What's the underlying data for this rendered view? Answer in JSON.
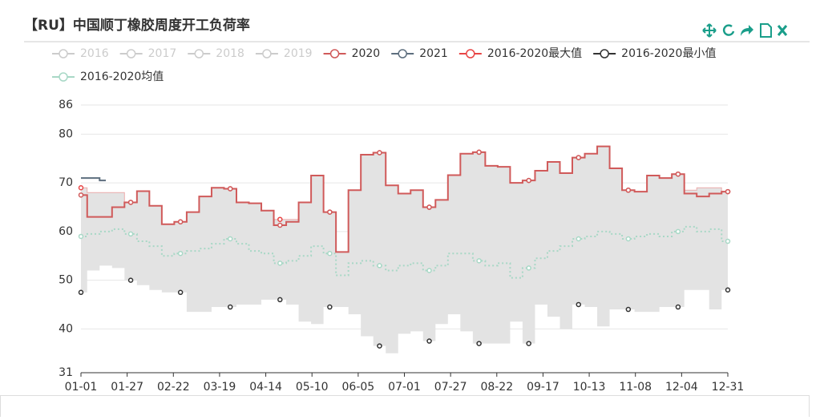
{
  "chart_data": {
    "type": "step-line",
    "title": "【RU】中国顺丁橡胶周度开工负荷率",
    "x": [
      0,
      7,
      14,
      21,
      28,
      35,
      42,
      49,
      56,
      63,
      70,
      77,
      84,
      91,
      98,
      105,
      112,
      119,
      126,
      133,
      140,
      147,
      154,
      161,
      168,
      175,
      182,
      189,
      196,
      203,
      210,
      217,
      224,
      231,
      238,
      245,
      252,
      259,
      266,
      273,
      280,
      287,
      294,
      301,
      308,
      315,
      322,
      329,
      336,
      343,
      350,
      357,
      364
    ],
    "xlim": [
      0,
      364
    ],
    "xticks": [
      {
        "value": 0,
        "label": "01-01"
      },
      {
        "value": 26,
        "label": "01-27"
      },
      {
        "value": 52,
        "label": "02-22"
      },
      {
        "value": 78,
        "label": "03-19"
      },
      {
        "value": 104,
        "label": "04-14"
      },
      {
        "value": 130,
        "label": "05-10"
      },
      {
        "value": 156,
        "label": "06-05"
      },
      {
        "value": 182,
        "label": "07-01"
      },
      {
        "value": 208,
        "label": "07-27"
      },
      {
        "value": 234,
        "label": "08-22"
      },
      {
        "value": 260,
        "label": "09-17"
      },
      {
        "value": 286,
        "label": "10-13"
      },
      {
        "value": 312,
        "label": "11-08"
      },
      {
        "value": 338,
        "label": "12-04"
      },
      {
        "value": 364,
        "label": "12-31"
      }
    ],
    "ylim": [
      31,
      86
    ],
    "yticks": [
      31,
      40,
      50,
      60,
      70,
      80,
      86
    ],
    "grid": true,
    "legend_disabled_color": "#cccccc",
    "series": [
      {
        "name": "2016",
        "color": "#cccccc",
        "hidden": true
      },
      {
        "name": "2017",
        "color": "#cccccc",
        "hidden": true
      },
      {
        "name": "2018",
        "color": "#cccccc",
        "hidden": true
      },
      {
        "name": "2019",
        "color": "#cccccc",
        "hidden": true
      },
      {
        "name": "2020",
        "color": "#d05a5a",
        "role": "line",
        "values": [
          67.5,
          63,
          63,
          65,
          66,
          68.3,
          65.3,
          61.5,
          62,
          64,
          67.2,
          69,
          68.8,
          66,
          65.8,
          64.3,
          61.3,
          62,
          66,
          71.5,
          64,
          55.8,
          68.5,
          75.8,
          76.2,
          69.5,
          67.8,
          68.5,
          65,
          66.5,
          71.6,
          76,
          76.3,
          73.5,
          73.3,
          70,
          70.5,
          72.5,
          74.3,
          72,
          75.2,
          76,
          77.5,
          73,
          68.5,
          68.2,
          71.5,
          71,
          71.8,
          67.8,
          67.2,
          67.8,
          68.2
        ]
      },
      {
        "name": "2021",
        "color": "#5d6e7e",
        "role": "line",
        "values": [
          71,
          71,
          70.5,
          null,
          null,
          null,
          null,
          null,
          null,
          null,
          null,
          null,
          null,
          null,
          null,
          null,
          null,
          null,
          null,
          null,
          null,
          null,
          null,
          null,
          null,
          null,
          null,
          null,
          null,
          null,
          null,
          null,
          null,
          null,
          null,
          null,
          null,
          null,
          null,
          null,
          null,
          null,
          null,
          null,
          null,
          null,
          null,
          null,
          null,
          null,
          null,
          null,
          null
        ]
      },
      {
        "name": "2016-2020最大值",
        "color": "#e84545",
        "role": "max",
        "values": [
          69,
          68,
          68,
          68,
          66,
          68.3,
          65.3,
          61.5,
          62,
          64,
          67.2,
          69,
          68.8,
          66,
          65.8,
          64.3,
          62.5,
          62.5,
          66,
          71.5,
          64,
          55.8,
          68.5,
          75.8,
          76.2,
          69.5,
          67.8,
          68.5,
          65,
          66.5,
          71.6,
          76,
          76.3,
          73.5,
          73.3,
          70,
          70.5,
          72.5,
          74.3,
          72,
          75.2,
          76,
          77.5,
          73,
          68.5,
          68.2,
          71.5,
          71,
          71.8,
          68.5,
          69,
          69,
          68.2
        ]
      },
      {
        "name": "2016-2020最小值",
        "color": "#333333",
        "role": "min",
        "values": [
          47.5,
          52,
          53,
          52.5,
          50,
          49,
          48,
          47.5,
          47.5,
          43.5,
          43.5,
          44.5,
          44.5,
          45,
          45,
          46,
          46,
          45,
          41.5,
          41,
          44.5,
          44.5,
          43,
          38.5,
          36.5,
          35,
          39,
          39.5,
          37.5,
          41,
          43,
          39.5,
          37,
          37,
          37,
          41.5,
          37,
          45,
          42.5,
          40,
          45,
          44.5,
          40.5,
          44,
          44,
          43.5,
          43.5,
          44.5,
          44.5,
          48,
          48,
          44,
          48
        ]
      },
      {
        "name": "2016-2020均值",
        "color": "#a8d8c6",
        "role": "mean",
        "values": [
          59,
          59.5,
          60,
          60.5,
          59.5,
          58,
          57,
          55,
          55.5,
          56,
          56.5,
          57.5,
          58.5,
          57.5,
          56,
          55.5,
          53.5,
          54,
          55,
          57,
          55.5,
          51,
          53.5,
          54,
          53,
          52,
          53,
          53.5,
          52,
          53,
          55.5,
          55.5,
          54,
          53,
          53.5,
          50.5,
          52.5,
          54.5,
          56,
          57,
          58.5,
          59,
          60,
          59.5,
          58.5,
          59,
          59.5,
          59,
          60,
          61,
          60,
          60.5,
          58
        ]
      }
    ]
  }
}
